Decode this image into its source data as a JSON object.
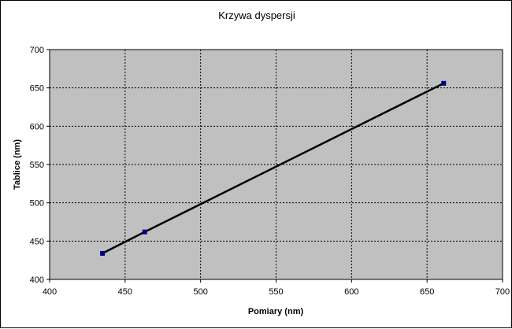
{
  "chart_data": {
    "type": "line",
    "title": "Krzywa dyspersji",
    "xlabel": "Pomiary (nm)",
    "ylabel": "Tablice (nm)",
    "xlim": [
      400,
      700
    ],
    "ylim": [
      400,
      700
    ],
    "x_ticks": [
      400,
      450,
      500,
      550,
      600,
      650,
      700
    ],
    "y_ticks": [
      400,
      450,
      500,
      550,
      600,
      650,
      700
    ],
    "grid": true,
    "legend": "none",
    "series": [
      {
        "points": [
          {
            "x": 435,
            "y": 434
          },
          {
            "x": 463,
            "y": 462
          },
          {
            "x": 661,
            "y": 656
          }
        ],
        "color": "#000000",
        "marker_color": "#000080"
      }
    ],
    "plot_background": "#c0c0c0",
    "grid_color": "#000000"
  }
}
